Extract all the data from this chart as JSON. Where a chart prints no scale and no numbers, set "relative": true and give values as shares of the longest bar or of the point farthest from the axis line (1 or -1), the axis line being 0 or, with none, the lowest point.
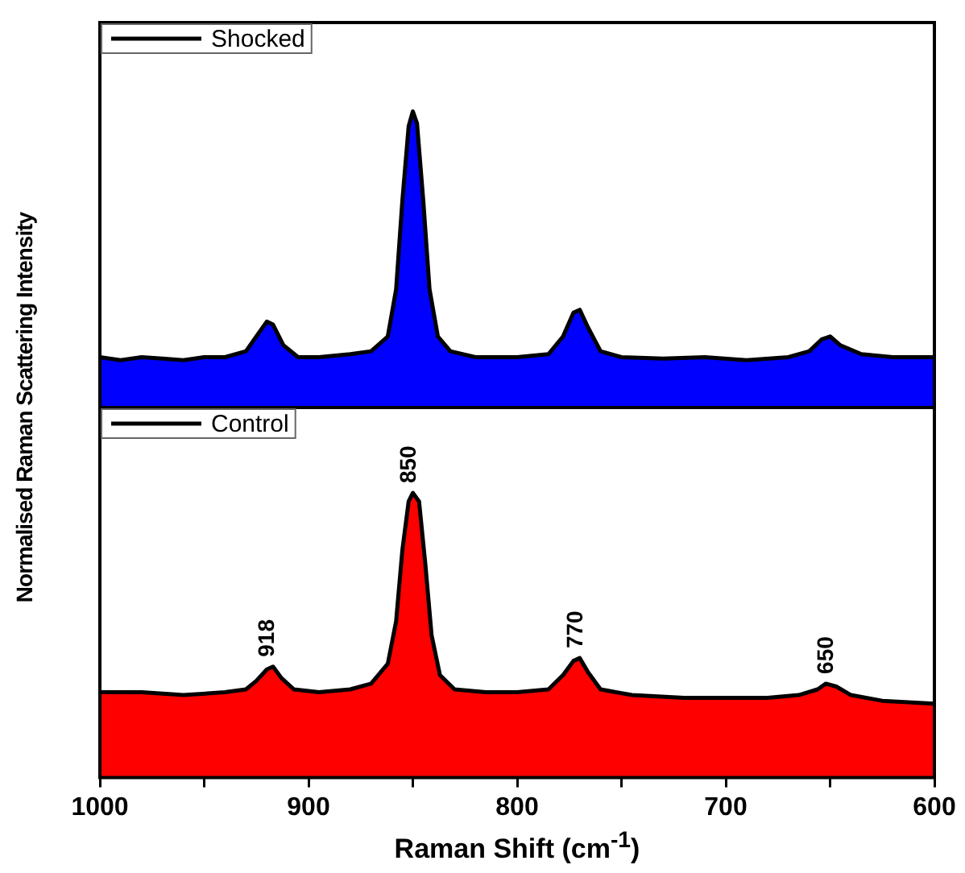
{
  "chart_data": [
    {
      "type": "area",
      "relative": true,
      "xlim": [
        1000,
        600
      ],
      "tick_labels": false,
      "legend": "top left",
      "ylabel": "Normalised Raman Scattering Intensity",
      "series": [
        {
          "name": "Shocked",
          "color": "#0000ff",
          "x": [
            1000,
            990,
            980,
            970,
            960,
            950,
            940,
            930,
            925,
            920,
            917,
            912,
            905,
            895,
            880,
            870,
            862,
            858,
            855,
            852,
            850,
            848,
            845,
            842,
            838,
            832,
            820,
            800,
            785,
            778,
            773,
            770,
            766,
            760,
            750,
            730,
            710,
            690,
            670,
            660,
            654,
            650,
            645,
            635,
            620,
            600
          ],
          "values": [
            0.17,
            0.16,
            0.17,
            0.165,
            0.16,
            0.17,
            0.17,
            0.19,
            0.24,
            0.29,
            0.28,
            0.21,
            0.17,
            0.17,
            0.18,
            0.19,
            0.24,
            0.4,
            0.7,
            0.95,
            1,
            0.96,
            0.7,
            0.4,
            0.24,
            0.19,
            0.17,
            0.17,
            0.18,
            0.24,
            0.32,
            0.33,
            0.27,
            0.19,
            0.17,
            0.165,
            0.17,
            0.16,
            0.17,
            0.19,
            0.23,
            0.24,
            0.21,
            0.18,
            0.17,
            0.17
          ]
        }
      ]
    },
    {
      "type": "area",
      "relative": true,
      "xlim": [
        1000,
        600
      ],
      "xticks": [
        1000,
        {
          "value": 950,
          "label": null
        },
        900,
        {
          "value": 850,
          "label": null
        },
        800,
        {
          "value": 750,
          "label": null
        },
        700,
        {
          "value": 650,
          "label": null
        },
        600
      ],
      "tick_labels": "x",
      "legend": "top left",
      "xlabel": "Raman Shift (cm$^{-1}$)",
      "annotations": [
        {
          "text": "918",
          "x": 918,
          "y": 0.39
        },
        {
          "text": "850",
          "x": 850,
          "y": 1
        },
        {
          "text": "770",
          "x": 770,
          "y": 0.42
        },
        {
          "text": "650",
          "x": 650,
          "y": 0.33
        }
      ],
      "series": [
        {
          "name": "Control",
          "color": "#ff0000",
          "x": [
            1000,
            980,
            960,
            940,
            930,
            925,
            920,
            917,
            913,
            907,
            895,
            880,
            870,
            862,
            858,
            855,
            852,
            850,
            847,
            844,
            841,
            837,
            830,
            815,
            800,
            785,
            778,
            773,
            770,
            766,
            760,
            745,
            720,
            700,
            680,
            665,
            656,
            652,
            647,
            640,
            625,
            600
          ],
          "values": [
            0.3,
            0.3,
            0.29,
            0.3,
            0.31,
            0.34,
            0.38,
            0.39,
            0.35,
            0.31,
            0.3,
            0.31,
            0.33,
            0.4,
            0.55,
            0.8,
            0.97,
            1,
            0.97,
            0.75,
            0.5,
            0.36,
            0.31,
            0.3,
            0.3,
            0.31,
            0.36,
            0.41,
            0.42,
            0.37,
            0.31,
            0.29,
            0.28,
            0.28,
            0.28,
            0.29,
            0.31,
            0.33,
            0.32,
            0.29,
            0.27,
            0.26
          ]
        }
      ]
    }
  ]
}
